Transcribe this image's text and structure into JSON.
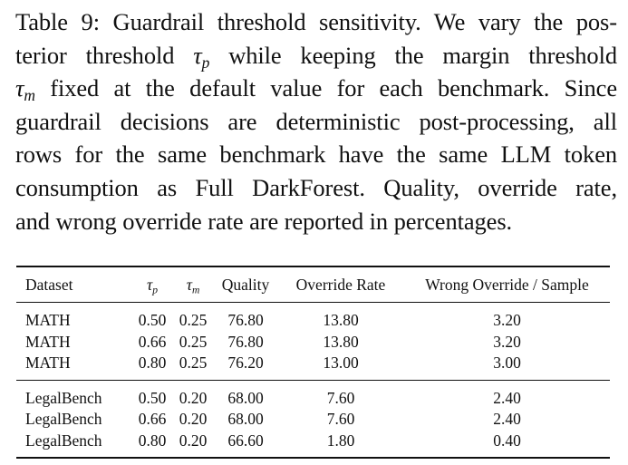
{
  "caption": {
    "lines": [
      "Table 9: Guardrail threshold sensitivity. We vary the pos-",
      "terior threshold {tp} while keeping the margin threshold",
      "{tm} fixed at the default value for each benchmark. Since",
      "guardrail decisions are deterministic post-processing, all",
      "rows for the same benchmark have the same LLM token",
      "consumption as Full DarkForest. Quality, override rate,",
      "and wrong override rate are reported in percentages."
    ],
    "line1": "Table 9: Guardrail threshold sensitivity. We vary the pos-",
    "line2_a": "terior threshold",
    "line2_b": "while keeping the margin threshold",
    "line3_b": "fixed at the default value for each benchmark. Since",
    "line4": "guardrail decisions are deterministic post-processing, all",
    "line5": "rows for the same benchmark have the same LLM token",
    "line6": "consumption as Full DarkForest. Quality, override rate,",
    "line7": "and wrong override rate are reported in percentages.",
    "tau_symbol": "τ",
    "tau_p_sub": "p",
    "tau_m_sub": "m"
  },
  "table": {
    "headers": {
      "dataset": "Dataset",
      "tau_p_symbol": "τ",
      "tau_p_sub": "p",
      "tau_m_symbol": "τ",
      "tau_m_sub": "m",
      "quality": "Quality",
      "override_rate": "Override Rate",
      "wrong_override": "Wrong Override / Sample"
    },
    "groups": [
      {
        "rows": [
          {
            "dataset": "MATH",
            "tau_p": "0.50",
            "tau_m": "0.25",
            "quality": "76.80",
            "override_rate": "13.80",
            "wrong_override": "3.20"
          },
          {
            "dataset": "MATH",
            "tau_p": "0.66",
            "tau_m": "0.25",
            "quality": "76.80",
            "override_rate": "13.80",
            "wrong_override": "3.20"
          },
          {
            "dataset": "MATH",
            "tau_p": "0.80",
            "tau_m": "0.25",
            "quality": "76.20",
            "override_rate": "13.00",
            "wrong_override": "3.00"
          }
        ]
      },
      {
        "rows": [
          {
            "dataset": "LegalBench",
            "tau_p": "0.50",
            "tau_m": "0.20",
            "quality": "68.00",
            "override_rate": "7.60",
            "wrong_override": "2.40"
          },
          {
            "dataset": "LegalBench",
            "tau_p": "0.66",
            "tau_m": "0.20",
            "quality": "68.00",
            "override_rate": "7.60",
            "wrong_override": "2.40"
          },
          {
            "dataset": "LegalBench",
            "tau_p": "0.80",
            "tau_m": "0.20",
            "quality": "66.60",
            "override_rate": "1.80",
            "wrong_override": "0.40"
          }
        ]
      }
    ]
  }
}
